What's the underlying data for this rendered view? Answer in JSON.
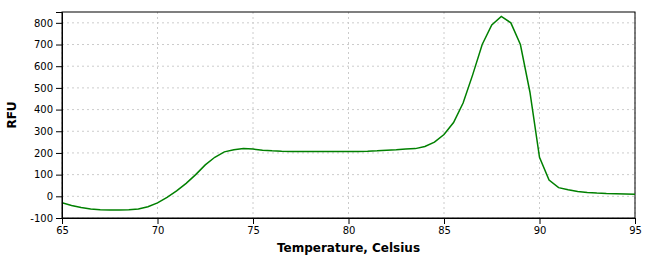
{
  "chart_data": {
    "type": "line",
    "xlabel": "Temperature, Celsius",
    "ylabel": "RFU",
    "x": [
      65,
      65.5,
      66,
      66.5,
      67,
      67.5,
      68,
      68.5,
      69,
      69.5,
      70,
      70.5,
      71,
      71.5,
      72,
      72.5,
      73,
      73.5,
      74,
      74.5,
      75,
      75.5,
      76,
      76.5,
      77,
      77.5,
      78,
      78.5,
      79,
      79.5,
      80,
      80.5,
      81,
      81.5,
      82,
      82.5,
      83,
      83.5,
      84,
      84.5,
      85,
      85.5,
      86,
      86.5,
      87,
      87.5,
      88,
      88.5,
      89,
      89.5,
      90,
      90.5,
      91,
      91.5,
      92,
      92.5,
      93,
      93.5,
      94,
      94.5,
      95
    ],
    "series": [
      {
        "color": "#008000",
        "values": [
          -30,
          -42,
          -52,
          -58,
          -62,
          -63,
          -63,
          -62,
          -58,
          -48,
          -30,
          -5,
          25,
          60,
          100,
          145,
          180,
          205,
          215,
          220,
          218,
          213,
          210,
          208,
          207,
          207,
          207,
          207,
          207,
          207,
          207,
          207,
          208,
          210,
          213,
          215,
          218,
          220,
          230,
          250,
          285,
          340,
          430,
          560,
          700,
          790,
          830,
          800,
          700,
          480,
          180,
          75,
          40,
          30,
          22,
          18,
          15,
          13,
          12,
          11,
          10
        ]
      }
    ],
    "xlim": [
      65,
      95
    ],
    "ylim": [
      -100,
      850
    ],
    "xticks": [
      65,
      70,
      75,
      80,
      85,
      90,
      95
    ],
    "yticks": [
      -100,
      0,
      100,
      200,
      300,
      400,
      500,
      600,
      700,
      800
    ],
    "grid": true
  }
}
